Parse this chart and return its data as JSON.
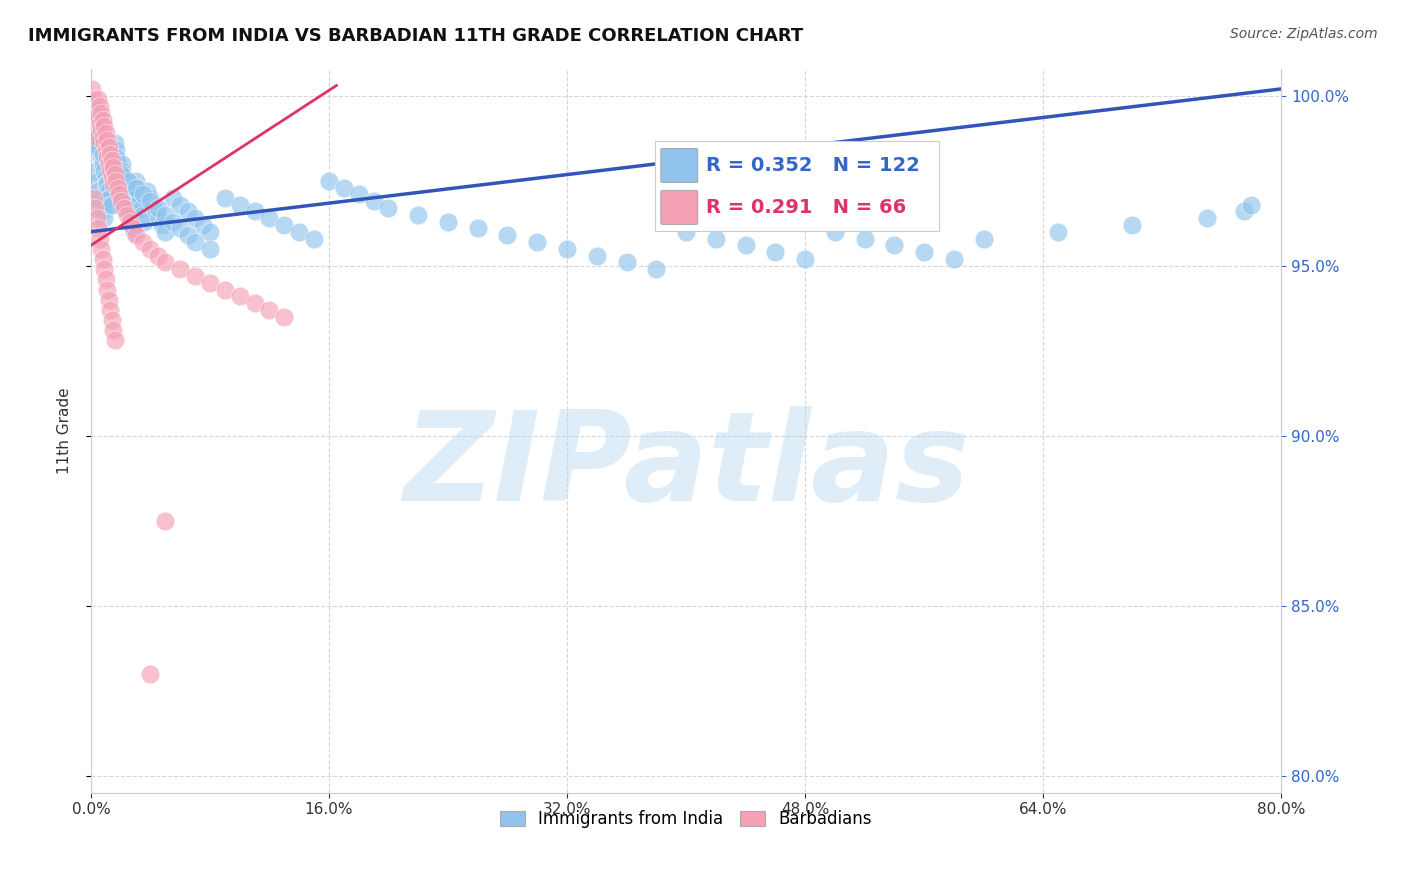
{
  "title": "IMMIGRANTS FROM INDIA VS BARBADIAN 11TH GRADE CORRELATION CHART",
  "source": "Source: ZipAtlas.com",
  "ylabel": "11th Grade",
  "xlim": [
    0.0,
    0.8
  ],
  "ylim": [
    0.795,
    1.008
  ],
  "ytick_values": [
    0.8,
    0.85,
    0.9,
    0.95,
    1.0
  ],
  "xtick_values": [
    0.0,
    0.16,
    0.32,
    0.48,
    0.64,
    0.8
  ],
  "grid_color": "#cccccc",
  "watermark_text": "ZIPatlas",
  "blue_R": 0.352,
  "blue_N": 122,
  "pink_R": 0.291,
  "pink_N": 66,
  "blue_color": "#90C4EE",
  "blue_line_color": "#3355BB",
  "pink_color": "#F4A0B5",
  "pink_line_color": "#DD3366",
  "blue_scatter_x": [
    0.001,
    0.002,
    0.003,
    0.003,
    0.004,
    0.004,
    0.005,
    0.005,
    0.006,
    0.006,
    0.007,
    0.007,
    0.008,
    0.008,
    0.009,
    0.009,
    0.01,
    0.01,
    0.011,
    0.011,
    0.012,
    0.012,
    0.013,
    0.013,
    0.014,
    0.014,
    0.015,
    0.015,
    0.016,
    0.016,
    0.017,
    0.017,
    0.018,
    0.018,
    0.019,
    0.019,
    0.02,
    0.02,
    0.021,
    0.021,
    0.022,
    0.022,
    0.023,
    0.024,
    0.025,
    0.026,
    0.027,
    0.028,
    0.029,
    0.03,
    0.031,
    0.032,
    0.033,
    0.034,
    0.035,
    0.036,
    0.038,
    0.04,
    0.042,
    0.044,
    0.046,
    0.048,
    0.05,
    0.055,
    0.06,
    0.065,
    0.07,
    0.075,
    0.08,
    0.09,
    0.1,
    0.11,
    0.12,
    0.13,
    0.14,
    0.15,
    0.16,
    0.17,
    0.18,
    0.19,
    0.2,
    0.22,
    0.24,
    0.26,
    0.28,
    0.3,
    0.32,
    0.34,
    0.36,
    0.38,
    0.4,
    0.42,
    0.44,
    0.46,
    0.48,
    0.5,
    0.52,
    0.54,
    0.56,
    0.58,
    0.6,
    0.65,
    0.7,
    0.75,
    0.775,
    0.78,
    0.005,
    0.008,
    0.012,
    0.015,
    0.02,
    0.025,
    0.03,
    0.035,
    0.04,
    0.045,
    0.05,
    0.055,
    0.06,
    0.065,
    0.07,
    0.08
  ],
  "blue_scatter_y": [
    0.99,
    0.985,
    0.992,
    0.978,
    0.988,
    0.975,
    0.986,
    0.972,
    0.984,
    0.97,
    0.982,
    0.968,
    0.98,
    0.966,
    0.978,
    0.964,
    0.976,
    0.974,
    0.974,
    0.972,
    0.972,
    0.97,
    0.97,
    0.968,
    0.968,
    0.98,
    0.978,
    0.976,
    0.974,
    0.986,
    0.984,
    0.982,
    0.98,
    0.978,
    0.976,
    0.974,
    0.972,
    0.97,
    0.98,
    0.978,
    0.976,
    0.974,
    0.972,
    0.97,
    0.968,
    0.966,
    0.964,
    0.962,
    0.96,
    0.975,
    0.973,
    0.971,
    0.969,
    0.967,
    0.965,
    0.963,
    0.972,
    0.97,
    0.968,
    0.966,
    0.964,
    0.962,
    0.96,
    0.97,
    0.968,
    0.966,
    0.964,
    0.962,
    0.96,
    0.97,
    0.968,
    0.966,
    0.964,
    0.962,
    0.96,
    0.958,
    0.975,
    0.973,
    0.971,
    0.969,
    0.967,
    0.965,
    0.963,
    0.961,
    0.959,
    0.957,
    0.955,
    0.953,
    0.951,
    0.949,
    0.96,
    0.958,
    0.956,
    0.954,
    0.952,
    0.96,
    0.958,
    0.956,
    0.954,
    0.952,
    0.958,
    0.96,
    0.962,
    0.964,
    0.966,
    0.968,
    0.985,
    0.983,
    0.981,
    0.979,
    0.977,
    0.975,
    0.973,
    0.971,
    0.969,
    0.967,
    0.965,
    0.963,
    0.961,
    0.959,
    0.957,
    0.955
  ],
  "pink_scatter_x": [
    0.001,
    0.002,
    0.003,
    0.004,
    0.004,
    0.005,
    0.005,
    0.006,
    0.006,
    0.007,
    0.007,
    0.008,
    0.008,
    0.009,
    0.009,
    0.01,
    0.01,
    0.011,
    0.011,
    0.012,
    0.012,
    0.013,
    0.013,
    0.014,
    0.014,
    0.015,
    0.015,
    0.016,
    0.017,
    0.018,
    0.019,
    0.02,
    0.022,
    0.024,
    0.026,
    0.028,
    0.03,
    0.035,
    0.04,
    0.045,
    0.05,
    0.06,
    0.07,
    0.08,
    0.09,
    0.1,
    0.11,
    0.12,
    0.13,
    0.05,
    0.002,
    0.003,
    0.004,
    0.005,
    0.006,
    0.007,
    0.008,
    0.009,
    0.01,
    0.011,
    0.012,
    0.013,
    0.014,
    0.015,
    0.016,
    0.04
  ],
  "pink_scatter_y": [
    1.002,
    0.999,
    0.996,
    0.993,
    0.988,
    0.999,
    0.994,
    0.997,
    0.992,
    0.995,
    0.99,
    0.993,
    0.988,
    0.991,
    0.986,
    0.989,
    0.984,
    0.987,
    0.982,
    0.985,
    0.98,
    0.983,
    0.978,
    0.981,
    0.976,
    0.979,
    0.974,
    0.977,
    0.975,
    0.973,
    0.971,
    0.969,
    0.967,
    0.965,
    0.963,
    0.961,
    0.959,
    0.957,
    0.955,
    0.953,
    0.951,
    0.949,
    0.947,
    0.945,
    0.943,
    0.941,
    0.939,
    0.937,
    0.935,
    0.875,
    0.97,
    0.967,
    0.964,
    0.961,
    0.958,
    0.955,
    0.952,
    0.949,
    0.946,
    0.943,
    0.94,
    0.937,
    0.934,
    0.931,
    0.928,
    0.83
  ],
  "blue_trend_x": [
    0.0,
    0.8
  ],
  "blue_trend_y": [
    0.96,
    1.002
  ],
  "pink_trend_x": [
    0.0,
    0.165
  ],
  "pink_trend_y": [
    0.956,
    1.003
  ],
  "legend_label_blue": "Immigrants from India",
  "legend_label_pink": "Barbadians",
  "background_color": "#ffffff",
  "title_fontsize": 13,
  "axis_label_fontsize": 11,
  "tick_fontsize": 11,
  "source_fontsize": 10
}
